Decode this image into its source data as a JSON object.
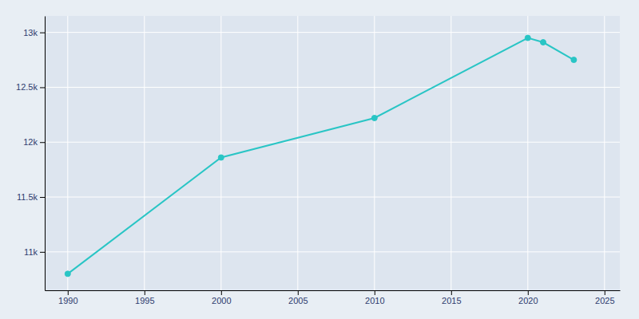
{
  "chart_data": {
    "type": "line",
    "x": [
      1990,
      2000,
      2010,
      2020,
      2021,
      2023
    ],
    "values": [
      10800,
      11860,
      12220,
      12950,
      12910,
      12750
    ],
    "color": "#29C5C5",
    "marker": "circle",
    "xlim": [
      1988.5,
      2026
    ],
    "ylim": [
      10650,
      13150
    ],
    "xticks": [
      1990,
      1995,
      2000,
      2005,
      2010,
      2015,
      2020,
      2025
    ],
    "yticks": [
      {
        "value": 11000,
        "label": "11k"
      },
      {
        "value": 11500,
        "label": "11.5k"
      },
      {
        "value": 12000,
        "label": "12k"
      },
      {
        "value": 12500,
        "label": "12.5k"
      },
      {
        "value": 13000,
        "label": "13k"
      }
    ],
    "grid": true
  }
}
